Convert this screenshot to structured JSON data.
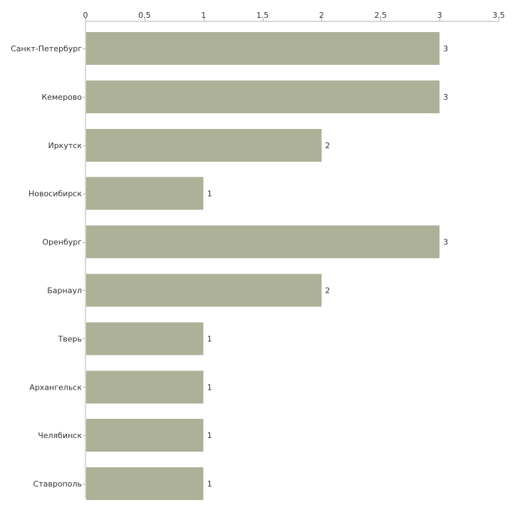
{
  "chart_data": {
    "type": "bar",
    "orientation": "horizontal",
    "title": "",
    "xlabel": "",
    "ylabel": "",
    "categories": [
      "Санкт-Петербург",
      "Кемерово",
      "Иркутск",
      "Новосибирск",
      "Оренбург",
      "Барнаул",
      "Тверь",
      "Архангельск",
      "Челябинск",
      "Ставрополь"
    ],
    "values": [
      3,
      3,
      2,
      1,
      3,
      2,
      1,
      1,
      1,
      1
    ],
    "value_labels": [
      "3",
      "3",
      "2",
      "1",
      "3",
      "2",
      "1",
      "1",
      "1",
      "1"
    ],
    "xlim": [
      0,
      3.5
    ],
    "ticks": [
      0,
      0.5,
      1,
      1.5,
      2,
      2.5,
      3,
      3.5
    ],
    "tick_labels": [
      "0",
      "0.5",
      "1",
      "1.5",
      "2",
      "2.5",
      "3",
      "3.5"
    ],
    "axis_position": "top",
    "grid": false,
    "legend": "none",
    "bar_color": "#acb197"
  }
}
